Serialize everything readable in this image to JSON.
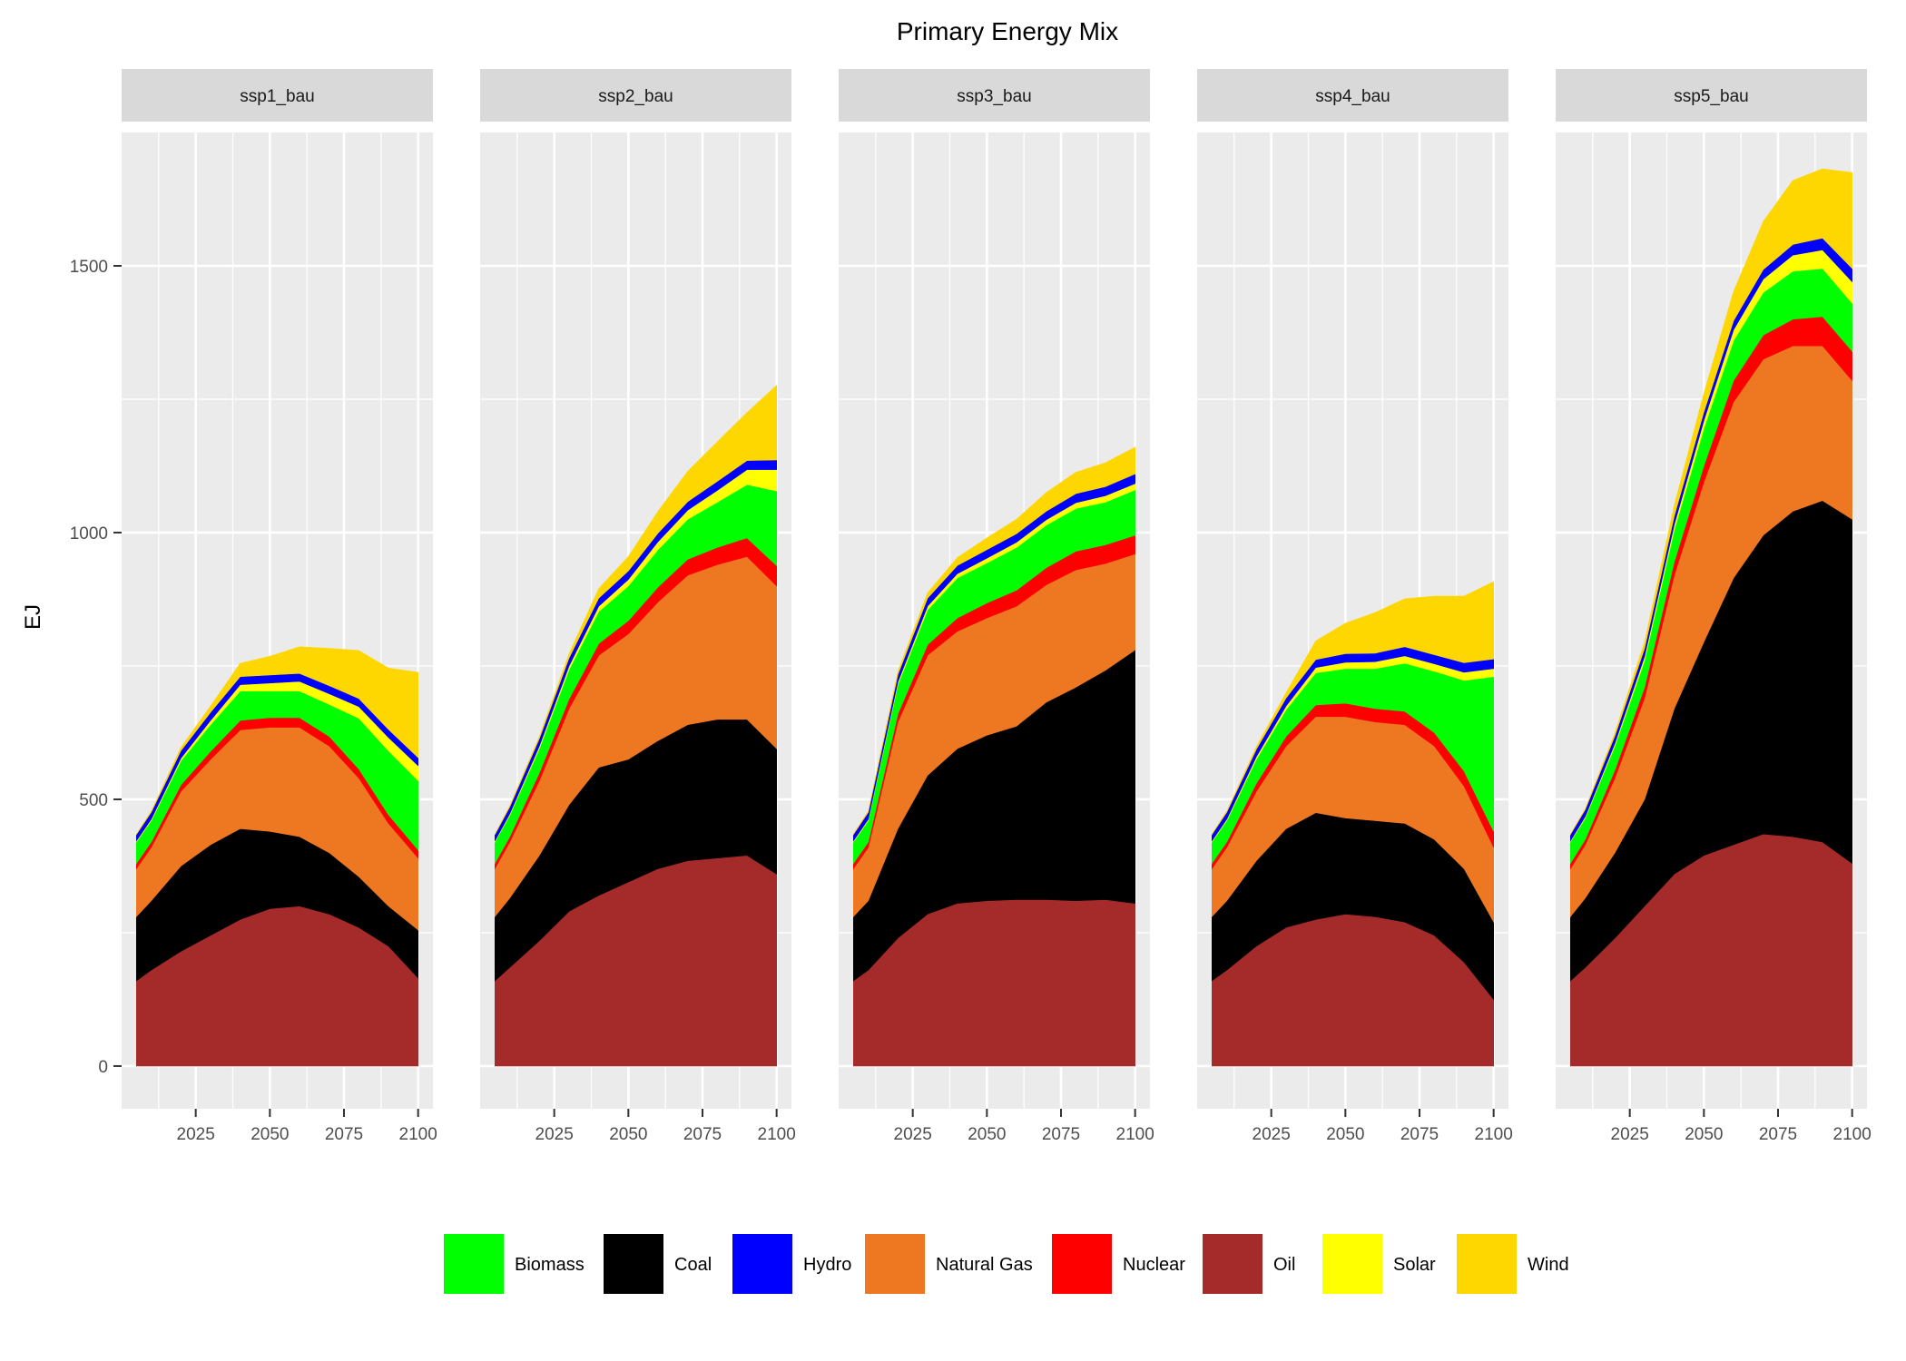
{
  "chart_data": {
    "type": "area",
    "stacked": true,
    "title": "Primary Energy Mix",
    "ylabel": "EJ",
    "xlabel": "",
    "ylim": [
      -80,
      1750
    ],
    "xlim": [
      2000,
      2105
    ],
    "yticks": [
      0,
      500,
      1000,
      1500
    ],
    "xticks": [
      2025,
      2050,
      2075,
      2100
    ],
    "grid": true,
    "legend_position": "bottom",
    "stack_order_bottom_to_top": [
      "Oil",
      "Coal",
      "Natural Gas",
      "Nuclear",
      "Biomass",
      "Solar",
      "Hydro",
      "Wind"
    ],
    "legend": [
      "Biomass",
      "Coal",
      "Hydro",
      "Natural Gas",
      "Nuclear",
      "Oil",
      "Solar",
      "Wind"
    ],
    "colors": {
      "Biomass": "#00ff00",
      "Coal": "#000000",
      "Hydro": "#0000ff",
      "Natural Gas": "#ee7722",
      "Nuclear": "#ff0000",
      "Oil": "#a52a2a",
      "Solar": "#ffff00",
      "Wind": "#ffd700"
    },
    "x": [
      2005,
      2010,
      2020,
      2030,
      2040,
      2050,
      2060,
      2070,
      2080,
      2090,
      2100
    ],
    "facets": [
      {
        "name": "ssp1_bau",
        "series": [
          {
            "name": "Oil",
            "values": [
              160,
              180,
              215,
              245,
              275,
              295,
              300,
              285,
              260,
              225,
              165
            ]
          },
          {
            "name": "Coal",
            "values": [
              120,
              130,
              160,
              170,
              170,
              145,
              130,
              115,
              95,
              75,
              90
            ]
          },
          {
            "name": "Natural Gas",
            "values": [
              90,
              100,
              140,
              160,
              185,
              195,
              205,
              200,
              185,
              155,
              135
            ]
          },
          {
            "name": "Nuclear",
            "values": [
              10,
              10,
              12,
              15,
              18,
              18,
              18,
              18,
              17,
              16,
              15
            ]
          },
          {
            "name": "Biomass",
            "values": [
              40,
              40,
              45,
              50,
              55,
              50,
              50,
              60,
              95,
              120,
              130
            ]
          },
          {
            "name": "Solar",
            "values": [
              2,
              3,
              5,
              8,
              12,
              15,
              18,
              20,
              22,
              25,
              28
            ]
          },
          {
            "name": "Hydro",
            "values": [
              12,
              13,
              14,
              15,
              15,
              15,
              15,
              15,
              15,
              15,
              15
            ]
          },
          {
            "name": "Wind",
            "values": [
              1,
              2,
              6,
              12,
              25,
              35,
              50,
              70,
              90,
              115,
              160
            ]
          }
        ]
      },
      {
        "name": "ssp2_bau",
        "series": [
          {
            "name": "Oil",
            "values": [
              160,
              185,
              235,
              290,
              320,
              345,
              370,
              385,
              390,
              395,
              360
            ]
          },
          {
            "name": "Coal",
            "values": [
              120,
              130,
              160,
              200,
              240,
              230,
              240,
              255,
              260,
              255,
              235
            ]
          },
          {
            "name": "Natural Gas",
            "values": [
              90,
              105,
              140,
              180,
              210,
              235,
              260,
              280,
              290,
              305,
              305
            ]
          },
          {
            "name": "Nuclear",
            "values": [
              10,
              10,
              15,
              18,
              22,
              25,
              28,
              30,
              32,
              35,
              38
            ]
          },
          {
            "name": "Biomass",
            "values": [
              40,
              40,
              45,
              55,
              60,
              65,
              70,
              75,
              85,
              100,
              140
            ]
          },
          {
            "name": "Solar",
            "values": [
              2,
              3,
              5,
              7,
              10,
              12,
              15,
              17,
              22,
              28,
              40
            ]
          },
          {
            "name": "Hydro",
            "values": [
              12,
              13,
              14,
              15,
              15,
              16,
              16,
              16,
              17,
              17,
              18
            ]
          },
          {
            "name": "Wind",
            "values": [
              1,
              2,
              4,
              8,
              18,
              27,
              41,
              57,
              74,
              90,
              140
            ]
          }
        ]
      },
      {
        "name": "ssp3_bau",
        "series": [
          {
            "name": "Oil",
            "values": [
              160,
              180,
              240,
              285,
              305,
              310,
              312,
              312,
              310,
              312,
              305
            ]
          },
          {
            "name": "Coal",
            "values": [
              120,
              130,
              205,
              260,
              290,
              310,
              325,
              370,
              400,
              430,
              475
            ]
          },
          {
            "name": "Natural Gas",
            "values": [
              90,
              100,
              200,
              225,
              220,
              220,
              225,
              220,
              220,
              200,
              180
            ]
          },
          {
            "name": "Nuclear",
            "values": [
              10,
              10,
              15,
              20,
              25,
              28,
              30,
              32,
              35,
              35,
              35
            ]
          },
          {
            "name": "Biomass",
            "values": [
              40,
              40,
              55,
              65,
              75,
              75,
              80,
              80,
              80,
              80,
              85
            ]
          },
          {
            "name": "Solar",
            "values": [
              2,
              3,
              5,
              7,
              8,
              9,
              10,
              10,
              11,
              12,
              12
            ]
          },
          {
            "name": "Hydro",
            "values": [
              12,
              13,
              14,
              15,
              15,
              16,
              16,
              16,
              17,
              17,
              18
            ]
          },
          {
            "name": "Wind",
            "values": [
              1,
              2,
              6,
              10,
              15,
              22,
              27,
              35,
              40,
              45,
              50
            ]
          }
        ]
      },
      {
        "name": "ssp4_bau",
        "series": [
          {
            "name": "Oil",
            "values": [
              160,
              180,
              225,
              260,
              275,
              285,
              280,
              270,
              245,
              195,
              125
            ]
          },
          {
            "name": "Coal",
            "values": [
              120,
              130,
              160,
              185,
              200,
              180,
              180,
              185,
              180,
              175,
              145
            ]
          },
          {
            "name": "Natural Gas",
            "values": [
              90,
              100,
              130,
              155,
              180,
              190,
              185,
              185,
              175,
              155,
              140
            ]
          },
          {
            "name": "Nuclear",
            "values": [
              10,
              10,
              15,
              18,
              22,
              25,
              25,
              25,
              25,
              28,
              30
            ]
          },
          {
            "name": "Biomass",
            "values": [
              40,
              40,
              45,
              50,
              60,
              65,
              75,
              90,
              115,
              170,
              290
            ]
          },
          {
            "name": "Solar",
            "values": [
              2,
              3,
              5,
              7,
              10,
              12,
              13,
              14,
              14,
              15,
              15
            ]
          },
          {
            "name": "Hydro",
            "values": [
              12,
              13,
              14,
              15,
              15,
              16,
              16,
              17,
              17,
              18,
              18
            ]
          },
          {
            "name": "Wind",
            "values": [
              1,
              2,
              5,
              10,
              35,
              57,
              76,
              90,
              110,
              125,
              145
            ]
          }
        ]
      },
      {
        "name": "ssp5_bau",
        "series": [
          {
            "name": "Oil",
            "values": [
              160,
              185,
              240,
              300,
              360,
              395,
              415,
              435,
              430,
              420,
              380
            ]
          },
          {
            "name": "Coal",
            "values": [
              120,
              130,
              160,
              200,
              310,
              400,
              500,
              560,
              610,
              640,
              645
            ]
          },
          {
            "name": "Natural Gas",
            "values": [
              90,
              100,
              140,
              190,
              250,
              300,
              330,
              330,
              310,
              290,
              260
            ]
          },
          {
            "name": "Nuclear",
            "values": [
              10,
              10,
              15,
              20,
              25,
              30,
              40,
              45,
              50,
              55,
              55
            ]
          },
          {
            "name": "Biomass",
            "values": [
              40,
              40,
              45,
              50,
              60,
              70,
              75,
              80,
              90,
              90,
              90
            ]
          },
          {
            "name": "Solar",
            "values": [
              2,
              3,
              5,
              8,
              10,
              15,
              20,
              25,
              30,
              35,
              40
            ]
          },
          {
            "name": "Hydro",
            "values": [
              12,
              13,
              14,
              15,
              16,
              16,
              17,
              18,
              20,
              22,
              25
            ]
          },
          {
            "name": "Wind",
            "values": [
              1,
              2,
              6,
              12,
              20,
              35,
              55,
              90,
              120,
              130,
              180
            ]
          }
        ]
      }
    ]
  }
}
